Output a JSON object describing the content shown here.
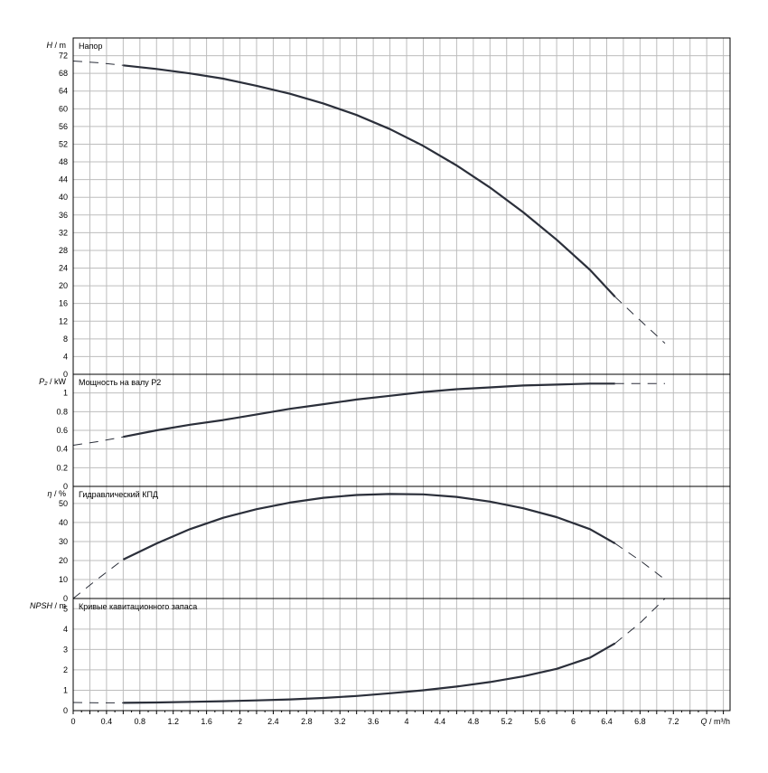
{
  "chart_data": [
    {
      "type": "line",
      "title": "Напор",
      "ylabel_var": "H",
      "ylabel_unit": "m",
      "ylim": [
        0,
        76
      ],
      "yticks": [
        0,
        4,
        8,
        12,
        16,
        20,
        24,
        28,
        32,
        36,
        40,
        44,
        48,
        52,
        56,
        60,
        64,
        68,
        72
      ],
      "series": [
        {
          "solid": [
            [
              0.6,
              69.8
            ],
            [
              1.0,
              69.0
            ],
            [
              1.4,
              68.0
            ],
            [
              1.8,
              66.8
            ],
            [
              2.2,
              65.2
            ],
            [
              2.6,
              63.4
            ],
            [
              3.0,
              61.2
            ],
            [
              3.4,
              58.6
            ],
            [
              3.8,
              55.4
            ],
            [
              4.2,
              51.6
            ],
            [
              4.6,
              47.2
            ],
            [
              5.0,
              42.2
            ],
            [
              5.4,
              36.6
            ],
            [
              5.8,
              30.4
            ],
            [
              6.2,
              23.6
            ],
            [
              6.5,
              17.5
            ]
          ],
          "dashed_start": [
            [
              0.0,
              70.8
            ],
            [
              0.3,
              70.4
            ],
            [
              0.6,
              69.8
            ]
          ],
          "dashed_end": [
            [
              6.5,
              17.5
            ],
            [
              6.8,
              12.2
            ],
            [
              7.1,
              7.0
            ]
          ]
        }
      ]
    },
    {
      "type": "line",
      "title": "Мощность на валу P2",
      "ylabel_var": "P₂",
      "ylabel_unit": "kW",
      "ylim": [
        0,
        1.2
      ],
      "yticks": [
        0,
        0.2,
        0.4,
        0.6,
        0.8,
        1
      ],
      "series": [
        {
          "solid": [
            [
              0.6,
              0.53
            ],
            [
              1.0,
              0.6
            ],
            [
              1.4,
              0.66
            ],
            [
              1.8,
              0.71
            ],
            [
              2.2,
              0.77
            ],
            [
              2.6,
              0.83
            ],
            [
              3.0,
              0.88
            ],
            [
              3.4,
              0.93
            ],
            [
              3.8,
              0.97
            ],
            [
              4.2,
              1.01
            ],
            [
              4.6,
              1.04
            ],
            [
              5.0,
              1.06
            ],
            [
              5.4,
              1.08
            ],
            [
              5.8,
              1.09
            ],
            [
              6.2,
              1.1
            ],
            [
              6.5,
              1.1
            ]
          ],
          "dashed_start": [
            [
              0.0,
              0.44
            ],
            [
              0.3,
              0.48
            ],
            [
              0.6,
              0.53
            ]
          ],
          "dashed_end": [
            [
              6.5,
              1.1
            ],
            [
              6.8,
              1.1
            ],
            [
              7.1,
              1.1
            ]
          ]
        }
      ]
    },
    {
      "type": "line",
      "title": "Гидравлический КПД",
      "ylabel_var": "η",
      "ylabel_unit": "%",
      "ylim": [
        0,
        59
      ],
      "yticks": [
        0,
        10,
        20,
        30,
        40,
        50
      ],
      "series": [
        {
          "solid": [
            [
              0.6,
              20.5
            ],
            [
              1.0,
              29.0
            ],
            [
              1.4,
              36.5
            ],
            [
              1.8,
              42.5
            ],
            [
              2.2,
              47.0
            ],
            [
              2.6,
              50.5
            ],
            [
              3.0,
              53.0
            ],
            [
              3.4,
              54.5
            ],
            [
              3.8,
              55.0
            ],
            [
              4.2,
              54.8
            ],
            [
              4.6,
              53.5
            ],
            [
              5.0,
              51.0
            ],
            [
              5.4,
              47.5
            ],
            [
              5.8,
              42.8
            ],
            [
              6.2,
              36.5
            ],
            [
              6.5,
              29.0
            ]
          ],
          "dashed_start": [
            [
              0.0,
              0.0
            ],
            [
              0.3,
              10.5
            ],
            [
              0.6,
              20.5
            ]
          ],
          "dashed_end": [
            [
              6.5,
              29.0
            ],
            [
              6.8,
              20.0
            ],
            [
              7.1,
              10.0
            ]
          ]
        }
      ]
    },
    {
      "type": "line",
      "title": "Кривые кавитационного запаса",
      "ylabel_var": "NPSH",
      "ylabel_unit": "m",
      "ylim": [
        0,
        5.5
      ],
      "yticks": [
        0,
        1,
        2,
        3,
        4,
        5
      ],
      "series": [
        {
          "solid": [
            [
              0.6,
              0.38
            ],
            [
              1.0,
              0.4
            ],
            [
              1.4,
              0.43
            ],
            [
              1.8,
              0.46
            ],
            [
              2.2,
              0.5
            ],
            [
              2.6,
              0.55
            ],
            [
              3.0,
              0.62
            ],
            [
              3.4,
              0.72
            ],
            [
              3.8,
              0.85
            ],
            [
              4.2,
              1.0
            ],
            [
              4.6,
              1.18
            ],
            [
              5.0,
              1.4
            ],
            [
              5.4,
              1.68
            ],
            [
              5.8,
              2.05
            ],
            [
              6.2,
              2.6
            ],
            [
              6.5,
              3.3
            ]
          ],
          "dashed_start": [
            [
              0.0,
              0.4
            ],
            [
              0.3,
              0.38
            ],
            [
              0.6,
              0.38
            ]
          ],
          "dashed_end": [
            [
              6.5,
              3.3
            ],
            [
              6.8,
              4.3
            ],
            [
              7.1,
              5.5
            ]
          ]
        }
      ]
    }
  ],
  "x_axis": {
    "label_var": "Q",
    "label_unit": "m³/h",
    "xlim": [
      0,
      7.88
    ],
    "ticks": [
      "0",
      "0.4",
      "0.8",
      "1.2",
      "1.6",
      "2",
      "2.4",
      "2.8",
      "3.2",
      "3.6",
      "4",
      "4.4",
      "4.8",
      "5.2",
      "5.6",
      "6",
      "6.4",
      "6.8",
      "7.2"
    ],
    "grid": true
  },
  "colors": {
    "curve": "#2b2f3a",
    "grid": "#bdbdbd",
    "frame": "#000000"
  }
}
